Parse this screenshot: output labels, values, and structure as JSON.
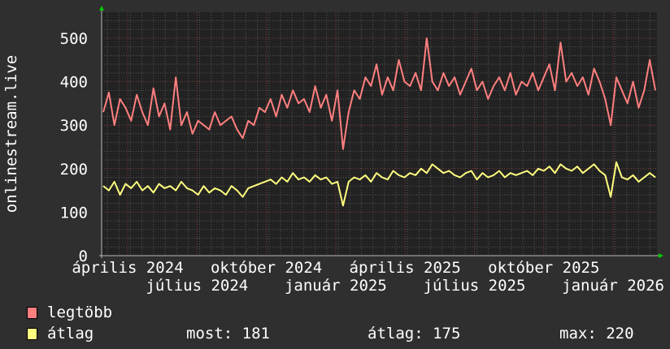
{
  "chart_data": {
    "type": "line",
    "ylabel": "onlinestream.live",
    "ylim": [
      0,
      550
    ],
    "yticks": [
      0,
      100,
      200,
      300,
      400,
      500
    ],
    "xtick_labels": [
      "április 2024",
      "július 2024",
      "október 2024",
      "január 2025",
      "április 2025",
      "július 2025",
      "október 2025",
      "január 2026"
    ],
    "grid": true,
    "legend": "bottom-left",
    "series": [
      {
        "name": "legtöbb",
        "color": "#ff7f7f",
        "values": [
          330,
          375,
          300,
          360,
          340,
          310,
          370,
          330,
          300,
          385,
          320,
          350,
          290,
          410,
          300,
          330,
          280,
          310,
          300,
          290,
          330,
          300,
          310,
          320,
          290,
          270,
          310,
          300,
          340,
          330,
          360,
          320,
          370,
          340,
          380,
          350,
          360,
          330,
          390,
          340,
          370,
          310,
          380,
          245,
          330,
          380,
          360,
          410,
          390,
          440,
          370,
          410,
          380,
          450,
          400,
          390,
          420,
          380,
          500,
          400,
          380,
          420,
          390,
          410,
          370,
          400,
          430,
          380,
          400,
          360,
          390,
          410,
          380,
          420,
          370,
          400,
          390,
          420,
          380,
          410,
          440,
          380,
          490,
          400,
          420,
          390,
          410,
          370,
          430,
          400,
          360,
          300,
          410,
          380,
          350,
          400,
          340,
          380,
          450,
          380
        ]
      },
      {
        "name": "átlag",
        "color": "#ffff7f",
        "values": [
          160,
          150,
          170,
          140,
          165,
          155,
          170,
          150,
          160,
          145,
          165,
          155,
          160,
          150,
          170,
          155,
          150,
          140,
          160,
          145,
          155,
          150,
          140,
          160,
          150,
          135,
          155,
          160,
          165,
          170,
          175,
          165,
          180,
          170,
          190,
          175,
          180,
          170,
          185,
          175,
          180,
          165,
          170,
          115,
          170,
          180,
          175,
          185,
          170,
          190,
          180,
          175,
          195,
          185,
          180,
          190,
          185,
          200,
          190,
          210,
          200,
          190,
          195,
          185,
          180,
          190,
          195,
          175,
          190,
          180,
          185,
          195,
          180,
          190,
          185,
          190,
          195,
          185,
          200,
          195,
          205,
          190,
          210,
          200,
          195,
          205,
          190,
          200,
          210,
          195,
          185,
          135,
          215,
          180,
          175,
          185,
          170,
          180,
          190,
          180
        ]
      }
    ]
  },
  "legend": {
    "max_label": "legtöbb",
    "avg_label": "átlag",
    "most": "most: 181",
    "atlag": "átlag: 175",
    "max": "max: 220"
  }
}
